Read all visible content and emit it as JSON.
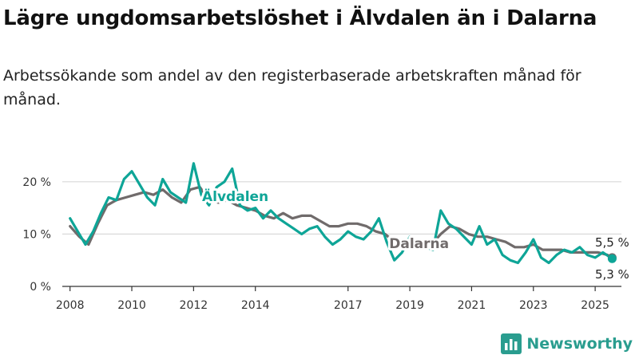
{
  "header": {
    "title": "Lägre ungdomsarbetslöshet i Älvdalen än i Dalarna",
    "subtitle": "Arbetssökande som andel av den registerbaserade arbetskraften månad för månad."
  },
  "brand": {
    "name": "Newsworthy",
    "logo_icon": "bar-chart-icon"
  },
  "colors": {
    "alvdalen": "#0ea597",
    "dalarna": "#706b6b",
    "grid": "#d9d9d9",
    "axis": "#333333"
  },
  "chart_data": {
    "type": "line",
    "title": "Lägre ungdomsarbetslöshet i Älvdalen än i Dalarna",
    "xlabel": "",
    "ylabel": "",
    "ylim": [
      0,
      25
    ],
    "xlim": [
      2007.75,
      2025.85
    ],
    "grid": true,
    "y_ticks": [
      {
        "value": 0,
        "label": "0 %"
      },
      {
        "value": 10,
        "label": "10 %"
      },
      {
        "value": 20,
        "label": "20 %"
      }
    ],
    "x_ticks": [
      {
        "value": 2008,
        "label": "2008"
      },
      {
        "value": 2010,
        "label": "2010"
      },
      {
        "value": 2012,
        "label": "2012"
      },
      {
        "value": 2014,
        "label": "2014"
      },
      {
        "value": 2017,
        "label": "2017"
      },
      {
        "value": 2019,
        "label": "2019"
      },
      {
        "value": 2021,
        "label": "2021"
      },
      {
        "value": 2023,
        "label": "2023"
      },
      {
        "value": 2025,
        "label": "2025"
      }
    ],
    "series": [
      {
        "name": "Dalarna",
        "color": "#706b6b",
        "x": [
          2008.0,
          2008.3,
          2008.6,
          2008.9,
          2009.2,
          2009.5,
          2009.8,
          2010.1,
          2010.4,
          2010.7,
          2011.0,
          2011.3,
          2011.6,
          2011.9,
          2012.2,
          2012.5,
          2012.8,
          2013.1,
          2013.4,
          2013.7,
          2014.0,
          2014.3,
          2014.6,
          2014.9,
          2015.2,
          2015.5,
          2015.8,
          2016.1,
          2016.4,
          2016.7,
          2017.0,
          2017.3,
          2017.6,
          2017.9,
          2018.2,
          2018.5,
          2018.8,
          2019.1,
          2019.4,
          2019.7,
          2020.0,
          2020.3,
          2020.6,
          2020.9,
          2021.2,
          2021.5,
          2021.8,
          2022.1,
          2022.4,
          2022.7,
          2023.0,
          2023.3,
          2023.6,
          2023.9,
          2024.2,
          2024.5,
          2024.8,
          2025.1,
          2025.4,
          2025.55
        ],
        "values": [
          11.5,
          9.5,
          8.0,
          12.0,
          15.5,
          16.5,
          17.0,
          17.5,
          18.0,
          17.5,
          18.5,
          17.0,
          16.0,
          18.5,
          19.0,
          16.5,
          16.0,
          16.5,
          15.5,
          15.0,
          14.5,
          13.5,
          13.0,
          14.0,
          13.0,
          13.5,
          13.5,
          12.5,
          11.5,
          11.5,
          12.0,
          12.0,
          11.5,
          10.5,
          10.0,
          8.5,
          8.5,
          8.5,
          8.0,
          8.0,
          10.0,
          11.5,
          11.0,
          10.0,
          9.5,
          9.5,
          9.0,
          8.5,
          7.5,
          7.5,
          8.0,
          7.0,
          7.0,
          7.0,
          6.5,
          6.5,
          6.5,
          6.5,
          6.0,
          5.5
        ],
        "end_label": "5,5 %"
      },
      {
        "name": "Älvdalen",
        "color": "#0ea597",
        "x": [
          2008.0,
          2008.25,
          2008.5,
          2008.75,
          2009.0,
          2009.25,
          2009.5,
          2009.75,
          2010.0,
          2010.25,
          2010.5,
          2010.75,
          2011.0,
          2011.25,
          2011.5,
          2011.75,
          2012.0,
          2012.25,
          2012.5,
          2012.75,
          2013.0,
          2013.25,
          2013.5,
          2013.75,
          2014.0,
          2014.25,
          2014.5,
          2014.75,
          2015.0,
          2015.25,
          2015.5,
          2015.75,
          2016.0,
          2016.25,
          2016.5,
          2016.75,
          2017.0,
          2017.25,
          2017.5,
          2017.75,
          2018.0,
          2018.25,
          2018.5,
          2018.75,
          2019.0,
          2019.25,
          2019.5,
          2019.75,
          2020.0,
          2020.25,
          2020.5,
          2020.75,
          2021.0,
          2021.25,
          2021.5,
          2021.75,
          2022.0,
          2022.25,
          2022.5,
          2022.75,
          2023.0,
          2023.25,
          2023.5,
          2023.75,
          2024.0,
          2024.25,
          2024.5,
          2024.75,
          2025.0,
          2025.25,
          2025.55
        ],
        "values": [
          13.0,
          10.5,
          8.0,
          10.5,
          14.0,
          17.0,
          16.5,
          20.5,
          22.0,
          19.5,
          17.0,
          15.5,
          20.5,
          18.0,
          17.0,
          16.0,
          23.5,
          17.5,
          15.5,
          19.0,
          20.0,
          22.5,
          15.5,
          14.5,
          15.0,
          13.0,
          14.5,
          13.0,
          12.0,
          11.0,
          10.0,
          11.0,
          11.5,
          9.5,
          8.0,
          9.0,
          10.5,
          9.5,
          9.0,
          10.5,
          13.0,
          8.5,
          5.0,
          6.5,
          9.5,
          8.5,
          7.5,
          7.0,
          14.5,
          12.0,
          11.0,
          9.5,
          8.0,
          11.5,
          8.0,
          9.0,
          6.0,
          5.0,
          4.5,
          6.5,
          9.0,
          5.5,
          4.5,
          6.0,
          7.0,
          6.5,
          7.5,
          6.0,
          5.5,
          6.5,
          5.3
        ],
        "end_label": "5,3 %"
      }
    ],
    "series_labels": [
      {
        "series": "Älvdalen",
        "text": "Älvdalen"
      },
      {
        "series": "Dalarna",
        "text": "Dalarna"
      }
    ]
  }
}
